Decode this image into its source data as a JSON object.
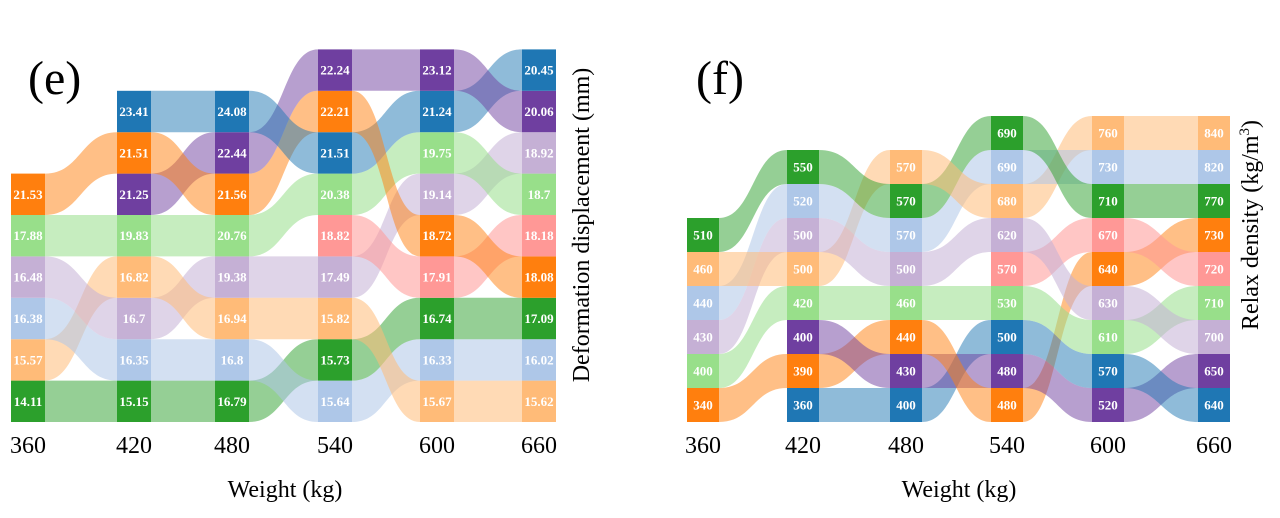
{
  "chart_data": [
    {
      "id": "e",
      "type": "alluvial",
      "panel_label": "(e)",
      "title": "",
      "xlabel": "Weight (kg)",
      "ylabel": "Deformation displacement (mm)",
      "categories": [
        "360",
        "420",
        "480",
        "540",
        "600",
        "660"
      ],
      "stacks": [
        [
          {
            "v": "14.11",
            "c": "#2ca02c",
            "light": false
          },
          {
            "v": "15.57",
            "c": "#ffbb78",
            "light": true
          },
          {
            "v": "16.38",
            "c": "#aec7e8",
            "light": true
          },
          {
            "v": "16.48",
            "c": "#c5b0d5",
            "light": true
          },
          {
            "v": "17.88",
            "c": "#98df8a",
            "light": true
          },
          {
            "v": "21.53",
            "c": "#ff7f0e",
            "light": false
          }
        ],
        [
          {
            "v": "15.15",
            "c": "#2ca02c",
            "light": false
          },
          {
            "v": "16.35",
            "c": "#aec7e8",
            "light": true
          },
          {
            "v": "16.7",
            "c": "#c5b0d5",
            "light": true
          },
          {
            "v": "16.82",
            "c": "#ffbb78",
            "light": true
          },
          {
            "v": "19.83",
            "c": "#98df8a",
            "light": true
          },
          {
            "v": "21.25",
            "c": "#6f3fa0",
            "light": false
          },
          {
            "v": "21.51",
            "c": "#ff7f0e",
            "light": false
          },
          {
            "v": "23.41",
            "c": "#1f77b4",
            "light": false
          }
        ],
        [
          {
            "v": "16.79",
            "c": "#2ca02c",
            "light": false
          },
          {
            "v": "16.8",
            "c": "#aec7e8",
            "light": true
          },
          {
            "v": "16.94",
            "c": "#ffbb78",
            "light": true
          },
          {
            "v": "19.38",
            "c": "#c5b0d5",
            "light": true
          },
          {
            "v": "20.76",
            "c": "#98df8a",
            "light": true
          },
          {
            "v": "21.56",
            "c": "#ff7f0e",
            "light": false
          },
          {
            "v": "22.44",
            "c": "#6f3fa0",
            "light": false
          },
          {
            "v": "24.08",
            "c": "#1f77b4",
            "light": false
          }
        ],
        [
          {
            "v": "15.64",
            "c": "#aec7e8",
            "light": true
          },
          {
            "v": "15.73",
            "c": "#2ca02c",
            "light": false
          },
          {
            "v": "15.82",
            "c": "#ffbb78",
            "light": true
          },
          {
            "v": "17.49",
            "c": "#c5b0d5",
            "light": true
          },
          {
            "v": "18.82",
            "c": "#ff9896",
            "light": true
          },
          {
            "v": "20.38",
            "c": "#98df8a",
            "light": true
          },
          {
            "v": "21.51",
            "c": "#1f77b4",
            "light": false
          },
          {
            "v": "22.21",
            "c": "#ff7f0e",
            "light": false
          },
          {
            "v": "22.24",
            "c": "#6f3fa0",
            "light": false
          }
        ],
        [
          {
            "v": "15.67",
            "c": "#ffbb78",
            "light": true
          },
          {
            "v": "16.33",
            "c": "#aec7e8",
            "light": true
          },
          {
            "v": "16.74",
            "c": "#2ca02c",
            "light": false
          },
          {
            "v": "17.91",
            "c": "#ff9896",
            "light": true
          },
          {
            "v": "18.72",
            "c": "#ff7f0e",
            "light": false
          },
          {
            "v": "19.14",
            "c": "#c5b0d5",
            "light": true
          },
          {
            "v": "19.75",
            "c": "#98df8a",
            "light": true
          },
          {
            "v": "21.24",
            "c": "#1f77b4",
            "light": false
          },
          {
            "v": "23.12",
            "c": "#6f3fa0",
            "light": false
          }
        ],
        [
          {
            "v": "15.62",
            "c": "#ffbb78",
            "light": true
          },
          {
            "v": "16.02",
            "c": "#aec7e8",
            "light": true
          },
          {
            "v": "17.09",
            "c": "#2ca02c",
            "light": false
          },
          {
            "v": "18.08",
            "c": "#ff7f0e",
            "light": false
          },
          {
            "v": "18.18",
            "c": "#ff9896",
            "light": true
          },
          {
            "v": "18.7",
            "c": "#98df8a",
            "light": true
          },
          {
            "v": "18.92",
            "c": "#c5b0d5",
            "light": true
          },
          {
            "v": "20.06",
            "c": "#6f3fa0",
            "light": false
          },
          {
            "v": "20.45",
            "c": "#1f77b4",
            "light": false
          }
        ]
      ]
    },
    {
      "id": "f",
      "type": "alluvial",
      "panel_label": "(f)",
      "title": "",
      "xlabel": "Weight (kg)",
      "ylabel_main": "Relax density (kg/m",
      "ylabel_sup": "3",
      "ylabel_end": ")",
      "categories": [
        "360",
        "420",
        "480",
        "540",
        "600",
        "660"
      ],
      "stacks": [
        [
          {
            "v": "340",
            "c": "#ff7f0e",
            "light": false
          },
          {
            "v": "400",
            "c": "#98df8a",
            "light": true
          },
          {
            "v": "430",
            "c": "#c5b0d5",
            "light": true
          },
          {
            "v": "440",
            "c": "#aec7e8",
            "light": true
          },
          {
            "v": "460",
            "c": "#ffbb78",
            "light": true
          },
          {
            "v": "510",
            "c": "#2ca02c",
            "light": false
          }
        ],
        [
          {
            "v": "360",
            "c": "#1f77b4",
            "light": false
          },
          {
            "v": "390",
            "c": "#ff7f0e",
            "light": false
          },
          {
            "v": "400",
            "c": "#6f3fa0",
            "light": false
          },
          {
            "v": "420",
            "c": "#98df8a",
            "light": true
          },
          {
            "v": "500",
            "c": "#ffbb78",
            "light": true
          },
          {
            "v": "500",
            "c": "#c5b0d5",
            "light": true
          },
          {
            "v": "520",
            "c": "#aec7e8",
            "light": true
          },
          {
            "v": "550",
            "c": "#2ca02c",
            "light": false
          }
        ],
        [
          {
            "v": "400",
            "c": "#1f77b4",
            "light": false
          },
          {
            "v": "430",
            "c": "#6f3fa0",
            "light": false
          },
          {
            "v": "440",
            "c": "#ff7f0e",
            "light": false
          },
          {
            "v": "460",
            "c": "#98df8a",
            "light": true
          },
          {
            "v": "500",
            "c": "#c5b0d5",
            "light": true
          },
          {
            "v": "570",
            "c": "#aec7e8",
            "light": true
          },
          {
            "v": "570",
            "c": "#2ca02c",
            "light": false
          },
          {
            "v": "570",
            "c": "#ffbb78",
            "light": true
          }
        ],
        [
          {
            "v": "480",
            "c": "#ff7f0e",
            "light": false
          },
          {
            "v": "480",
            "c": "#6f3fa0",
            "light": false
          },
          {
            "v": "500",
            "c": "#1f77b4",
            "light": false
          },
          {
            "v": "530",
            "c": "#98df8a",
            "light": true
          },
          {
            "v": "570",
            "c": "#ff9896",
            "light": true
          },
          {
            "v": "620",
            "c": "#c5b0d5",
            "light": true
          },
          {
            "v": "680",
            "c": "#ffbb78",
            "light": true
          },
          {
            "v": "690",
            "c": "#aec7e8",
            "light": true
          },
          {
            "v": "690",
            "c": "#2ca02c",
            "light": false
          }
        ],
        [
          {
            "v": "520",
            "c": "#6f3fa0",
            "light": false
          },
          {
            "v": "570",
            "c": "#1f77b4",
            "light": false
          },
          {
            "v": "610",
            "c": "#98df8a",
            "light": true
          },
          {
            "v": "630",
            "c": "#c5b0d5",
            "light": true
          },
          {
            "v": "640",
            "c": "#ff7f0e",
            "light": false
          },
          {
            "v": "670",
            "c": "#ff9896",
            "light": true
          },
          {
            "v": "710",
            "c": "#2ca02c",
            "light": false
          },
          {
            "v": "730",
            "c": "#aec7e8",
            "light": true
          },
          {
            "v": "760",
            "c": "#ffbb78",
            "light": true
          }
        ],
        [
          {
            "v": "640",
            "c": "#1f77b4",
            "light": false
          },
          {
            "v": "650",
            "c": "#6f3fa0",
            "light": false
          },
          {
            "v": "700",
            "c": "#c5b0d5",
            "light": true
          },
          {
            "v": "710",
            "c": "#98df8a",
            "light": true
          },
          {
            "v": "720",
            "c": "#ff9896",
            "light": true
          },
          {
            "v": "730",
            "c": "#ff7f0e",
            "light": false
          },
          {
            "v": "770",
            "c": "#2ca02c",
            "light": false
          },
          {
            "v": "820",
            "c": "#aec7e8",
            "light": true
          },
          {
            "v": "840",
            "c": "#ffbb78",
            "light": true
          }
        ]
      ]
    }
  ]
}
